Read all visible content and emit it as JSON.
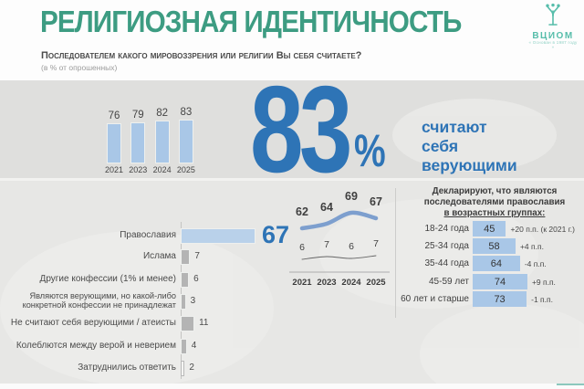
{
  "header": {
    "title": "РЕЛИГИОЗНАЯ ИДЕНТИЧНОСТЬ",
    "question": "Последователем какого мировоззрения или религии Вы себя считаете?",
    "note": "(в % от опрошенных)",
    "logo": {
      "name": "ВЦИОМ",
      "tagline": "« Основан в 1987 году »"
    }
  },
  "highlight": {
    "value": "83",
    "unit": "%",
    "caption": "считают себя верующими"
  },
  "colors": {
    "accent_green": "#3d9c82",
    "accent_blue": "#2e74b6",
    "bar_light_blue": "#aecbe9",
    "bar_gray": "#b4b4b4",
    "line_blue": "#7d9fce",
    "background": "#e3e3e1"
  },
  "chart_data": [
    {
      "type": "bar",
      "name": "believers-trend",
      "title": "Считают себя верующими",
      "categories": [
        "2021",
        "2023",
        "2024",
        "2025"
      ],
      "values": [
        76,
        79,
        82,
        83
      ],
      "ylim": [
        0,
        100
      ]
    },
    {
      "type": "bar",
      "name": "confession-structure",
      "orientation": "horizontal",
      "categories": [
        "Православия",
        "Ислама",
        "Другие конфессии (1% и менее)",
        "Являются верующими, но какой-либо конкретной конфессии не принадлежат",
        "Не считают себя верующими / атеисты",
        "Колеблются между верой и неверием",
        "Затруднились ответить"
      ],
      "values": [
        67,
        7,
        6,
        3,
        11,
        4,
        2
      ]
    },
    {
      "type": "line",
      "name": "confession-trend",
      "categories": [
        "2021",
        "2023",
        "2024",
        "2025"
      ],
      "series": [
        {
          "name": "Православия",
          "values": [
            62,
            64,
            69,
            67
          ]
        },
        {
          "name": "Ислама",
          "values": [
            6,
            7,
            6,
            7
          ]
        }
      ]
    },
    {
      "type": "bar",
      "name": "orthodox-by-age",
      "title_lines": [
        "Декларируют, что являются",
        "последователями православия",
        "в возрастных группах:"
      ],
      "categories": [
        "18-24 года",
        "25-34 года",
        "35-44 года",
        "45-59 лет",
        "60 лет и старше"
      ],
      "values": [
        45,
        58,
        64,
        74,
        73
      ],
      "changes": [
        "+20 п.п. (к 2021 г.)",
        "+4 п.п.",
        "-4 п.п.",
        "+9 п.п.",
        "-1 п.п."
      ]
    }
  ]
}
